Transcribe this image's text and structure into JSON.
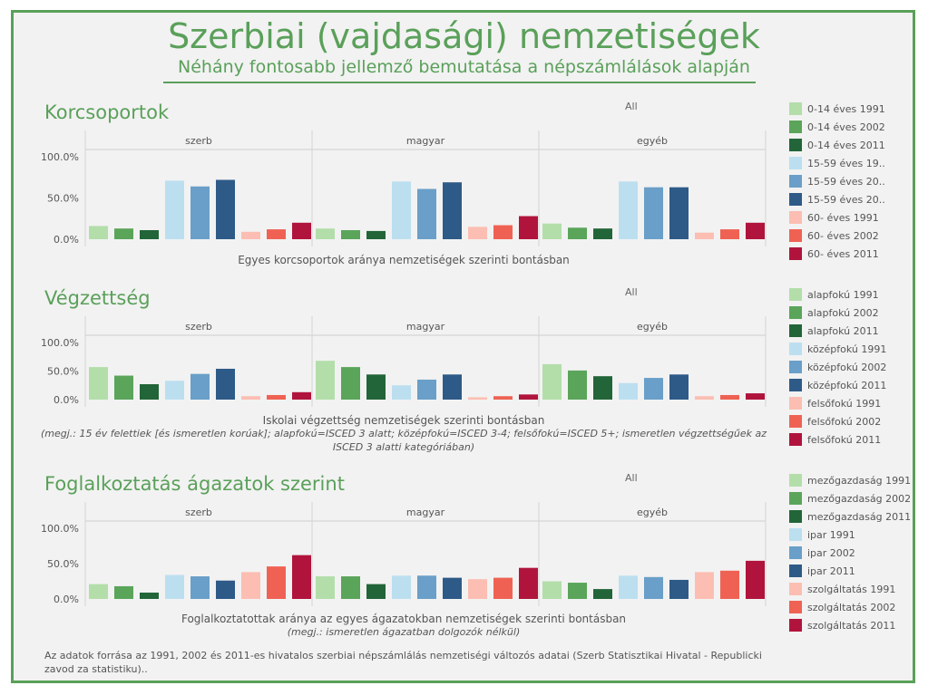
{
  "header": {
    "title": "Szerbiai (vajdasági) nemzetiségek",
    "subtitle": "Néhány fontosabb jellemző bemutatása a népszámlálások alapján"
  },
  "sections": [
    {
      "title": "Korcsoportok",
      "filter_label": "All",
      "caption": "Egyes korcsoportok aránya nemzetiségek szerinti bontásban",
      "note": "",
      "legend": [
        "0-14 éves 1991",
        "0-14 éves 2002",
        "0-14 éves 2011",
        "15-59 éves 19..",
        "15-59 éves 20..",
        "15-59 éves 20..",
        "60- éves 1991",
        "60- éves 2002",
        "60- éves 2011"
      ]
    },
    {
      "title": "Végzettség",
      "filter_label": "All",
      "caption": "Iskolai végzettség nemzetiségek szerinti bontásban",
      "note": "(megj.: 15 év felettiek [és ismeretlen korúak];  alapfokú=ISCED 3 alatt; középfokú=ISCED 3-4; felsőfokú=ISCED 5+; ismeretlen végzettségűek az ISCED 3 alatti kategóriában)",
      "legend": [
        "alapfokú 1991",
        "alapfokú 2002",
        "alapfokú 2011",
        "középfokú 1991",
        "középfokú 2002",
        "középfokú 2011",
        "felsőfokú 1991",
        "felsőfokú 2002",
        "felsőfokú 2011"
      ]
    },
    {
      "title": "Foglalkoztatás ágazatok szerint",
      "filter_label": "All",
      "caption": "Foglalkoztatottak aránya az egyes ágazatokban nemzetiségek szerinti bontásban",
      "note": "(megj.: ismeretlen ágazatban dolgozók nélkül)",
      "legend": [
        "mezőgazdaság 1991",
        "mezőgazdaság 2002",
        "mezőgazdaság 2011",
        "ipar 1991",
        "ipar 2002",
        "ipar 2011",
        "szolgáltatás 1991",
        "szolgáltatás 2002",
        "szolgáltatás 2011"
      ]
    }
  ],
  "colors": [
    "#b3deaa",
    "#5aa55a",
    "#226538",
    "#bcdff0",
    "#699fc8",
    "#2e5a88",
    "#fcbeb2",
    "#ef6253",
    "#b0143c"
  ],
  "source": "Az adatok forrása az 1991, 2002 és 2011-es hivatalos szerbiai népszámlálás nemzetiségi változós adatai (Szerb Statisztikai Hivatal - Republicki zavod za statistiku)..",
  "chart_data": [
    {
      "type": "bar",
      "panels": [
        "szerb",
        "magyar",
        "egyéb"
      ],
      "yticks": [
        "100.0%",
        "50.0%",
        "0.0%"
      ],
      "ylim": [
        0,
        100
      ],
      "grid": false,
      "legend_position": "right",
      "series": [
        {
          "name": "0-14 éves 1991",
          "values": [
            16,
            13,
            19
          ]
        },
        {
          "name": "0-14 éves 2002",
          "values": [
            13,
            11,
            14
          ]
        },
        {
          "name": "0-14 éves 2011",
          "values": [
            11,
            10,
            13
          ]
        },
        {
          "name": "15-59 éves 19..",
          "values": [
            71,
            70,
            70
          ]
        },
        {
          "name": "15-59 éves 20..",
          "values": [
            64,
            61,
            63
          ]
        },
        {
          "name": "15-59 éves 20..",
          "values": [
            72,
            69,
            63
          ]
        },
        {
          "name": "60- éves 1991",
          "values": [
            9,
            15,
            8
          ]
        },
        {
          "name": "60- éves 2002",
          "values": [
            12,
            17,
            12
          ]
        },
        {
          "name": "60- éves 2011",
          "values": [
            20,
            28,
            20
          ]
        }
      ]
    },
    {
      "type": "bar",
      "panels": [
        "szerb",
        "magyar",
        "egyéb"
      ],
      "yticks": [
        "100.0%",
        "50.0%",
        "0.0%"
      ],
      "ylim": [
        0,
        100
      ],
      "grid": false,
      "legend_position": "right",
      "series": [
        {
          "name": "alapfokú 1991",
          "values": [
            57,
            68,
            62
          ]
        },
        {
          "name": "alapfokú 2002",
          "values": [
            42,
            57,
            51
          ]
        },
        {
          "name": "alapfokú 2011",
          "values": [
            27,
            44,
            41
          ]
        },
        {
          "name": "középfokú 1991",
          "values": [
            33,
            25,
            29
          ]
        },
        {
          "name": "középfokú 2002",
          "values": [
            45,
            35,
            38
          ]
        },
        {
          "name": "középfokú 2011",
          "values": [
            54,
            44,
            44
          ]
        },
        {
          "name": "felsőfokú 1991",
          "values": [
            6,
            4,
            6
          ]
        },
        {
          "name": "felsőfokú 2002",
          "values": [
            8,
            6,
            8
          ]
        },
        {
          "name": "felsőfokú 2011",
          "values": [
            13,
            9,
            11
          ]
        }
      ]
    },
    {
      "type": "bar",
      "panels": [
        "szerb",
        "magyar",
        "egyéb"
      ],
      "yticks": [
        "100.0%",
        "50.0%",
        "0.0%"
      ],
      "ylim": [
        0,
        100
      ],
      "grid": false,
      "legend_position": "right",
      "series": [
        {
          "name": "mezőgazdaság 1991",
          "values": [
            21,
            32,
            25
          ]
        },
        {
          "name": "mezőgazdaság 2002",
          "values": [
            18,
            32,
            23
          ]
        },
        {
          "name": "mezőgazdaság 2011",
          "values": [
            9,
            21,
            14
          ]
        },
        {
          "name": "ipar 1991",
          "values": [
            34,
            33,
            33
          ]
        },
        {
          "name": "ipar 2002",
          "values": [
            32,
            33,
            31
          ]
        },
        {
          "name": "ipar 2011",
          "values": [
            26,
            30,
            27
          ]
        },
        {
          "name": "szolgáltatás 1991",
          "values": [
            38,
            28,
            38
          ]
        },
        {
          "name": "szolgáltatás 2002",
          "values": [
            46,
            30,
            40
          ]
        },
        {
          "name": "szolgáltatás 2011",
          "values": [
            62,
            44,
            54
          ]
        }
      ]
    }
  ]
}
